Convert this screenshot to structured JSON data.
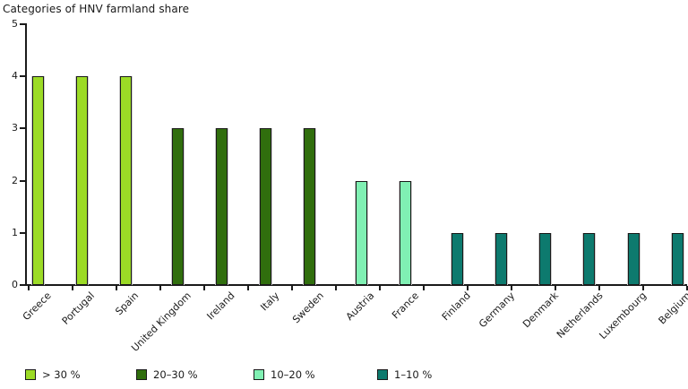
{
  "title": "Categories of HNV farmland share",
  "colors": {
    "axis": "#1a1a1a",
    "text": "#1a1a1a",
    "background": "#ffffff",
    "cat_gt30": "#9cdb26",
    "cat_20_30": "#306e0d",
    "cat_10_20": "#80f0b3",
    "cat_1_10": "#0d7a6e"
  },
  "legend": [
    {
      "label": "> 30 %",
      "color": "#9cdb26"
    },
    {
      "label": "20–30 %",
      "color": "#306e0d"
    },
    {
      "label": "10–20 %",
      "color": "#80f0b3"
    },
    {
      "label": "1–10 %",
      "color": "#0d7a6e"
    }
  ],
  "chart_data": {
    "type": "bar",
    "title": "Categories of HNV farmland share",
    "xlabel": "",
    "ylabel": "",
    "ylim": [
      0,
      5
    ],
    "yticks": [
      0,
      1,
      2,
      3,
      4,
      5
    ],
    "grid": false,
    "legend_position": "bottom",
    "categories": [
      "Greece",
      "Portugal",
      "Spain",
      "United Kingdom",
      "Ireland",
      "Italy",
      "Sweden",
      "Austria",
      "France",
      "Finland",
      "Germany",
      "Denmark",
      "Netherlands",
      "Luxembourg",
      "Belgium"
    ],
    "values": [
      4,
      4,
      4,
      3,
      3,
      3,
      3,
      2,
      2,
      1,
      1,
      1,
      1,
      1,
      1
    ],
    "bar_category": [
      "> 30 %",
      "> 30 %",
      "> 30 %",
      "20–30 %",
      "20–30 %",
      "20–30 %",
      "20–30 %",
      "10–20 %",
      "10–20 %",
      "1–10 %",
      "1–10 %",
      "1–10 %",
      "1–10 %",
      "1–10 %",
      "1–10 %"
    ],
    "group_index": [
      0,
      0,
      0,
      1,
      1,
      1,
      1,
      2,
      2,
      3,
      3,
      3,
      3,
      3,
      3
    ]
  }
}
